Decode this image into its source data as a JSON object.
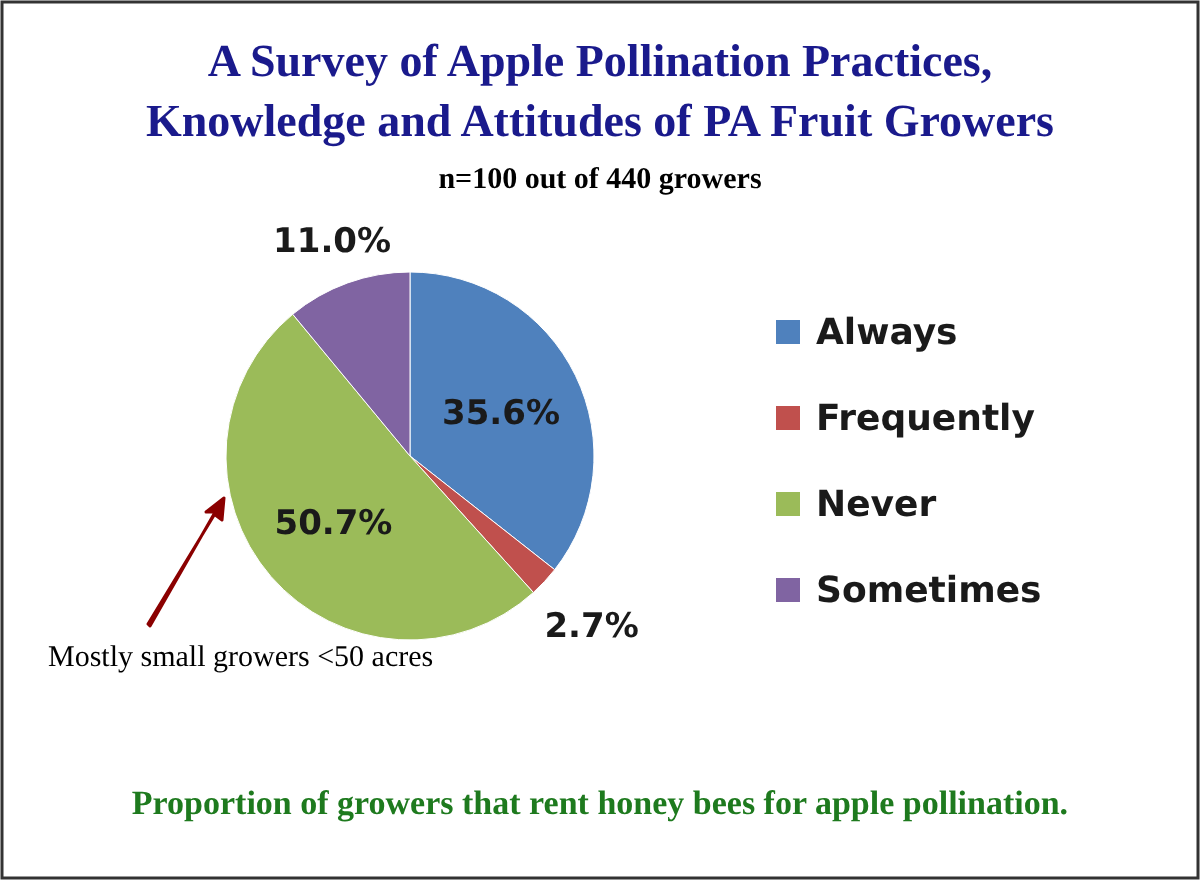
{
  "chart_data": {
    "type": "pie",
    "title": "A Survey of Apple Pollination Practices, Knowledge and Attitudes of PA Fruit Growers",
    "subtitle": "n=100 out of 440 growers",
    "categories": [
      "Always",
      "Frequently",
      "Never",
      "Sometimes"
    ],
    "values": [
      35.6,
      2.7,
      50.7,
      11.0
    ],
    "colors": [
      "#4f81bd",
      "#c0504d",
      "#9bbb59",
      "#8064a2"
    ],
    "value_labels": [
      "35.6%",
      "2.7%",
      "50.7%",
      "11.0%"
    ],
    "legend": "right",
    "annotations": [
      "Mostly small growers <50 acres",
      "Proportion of growers that rent honey bees for apple pollination."
    ]
  }
}
